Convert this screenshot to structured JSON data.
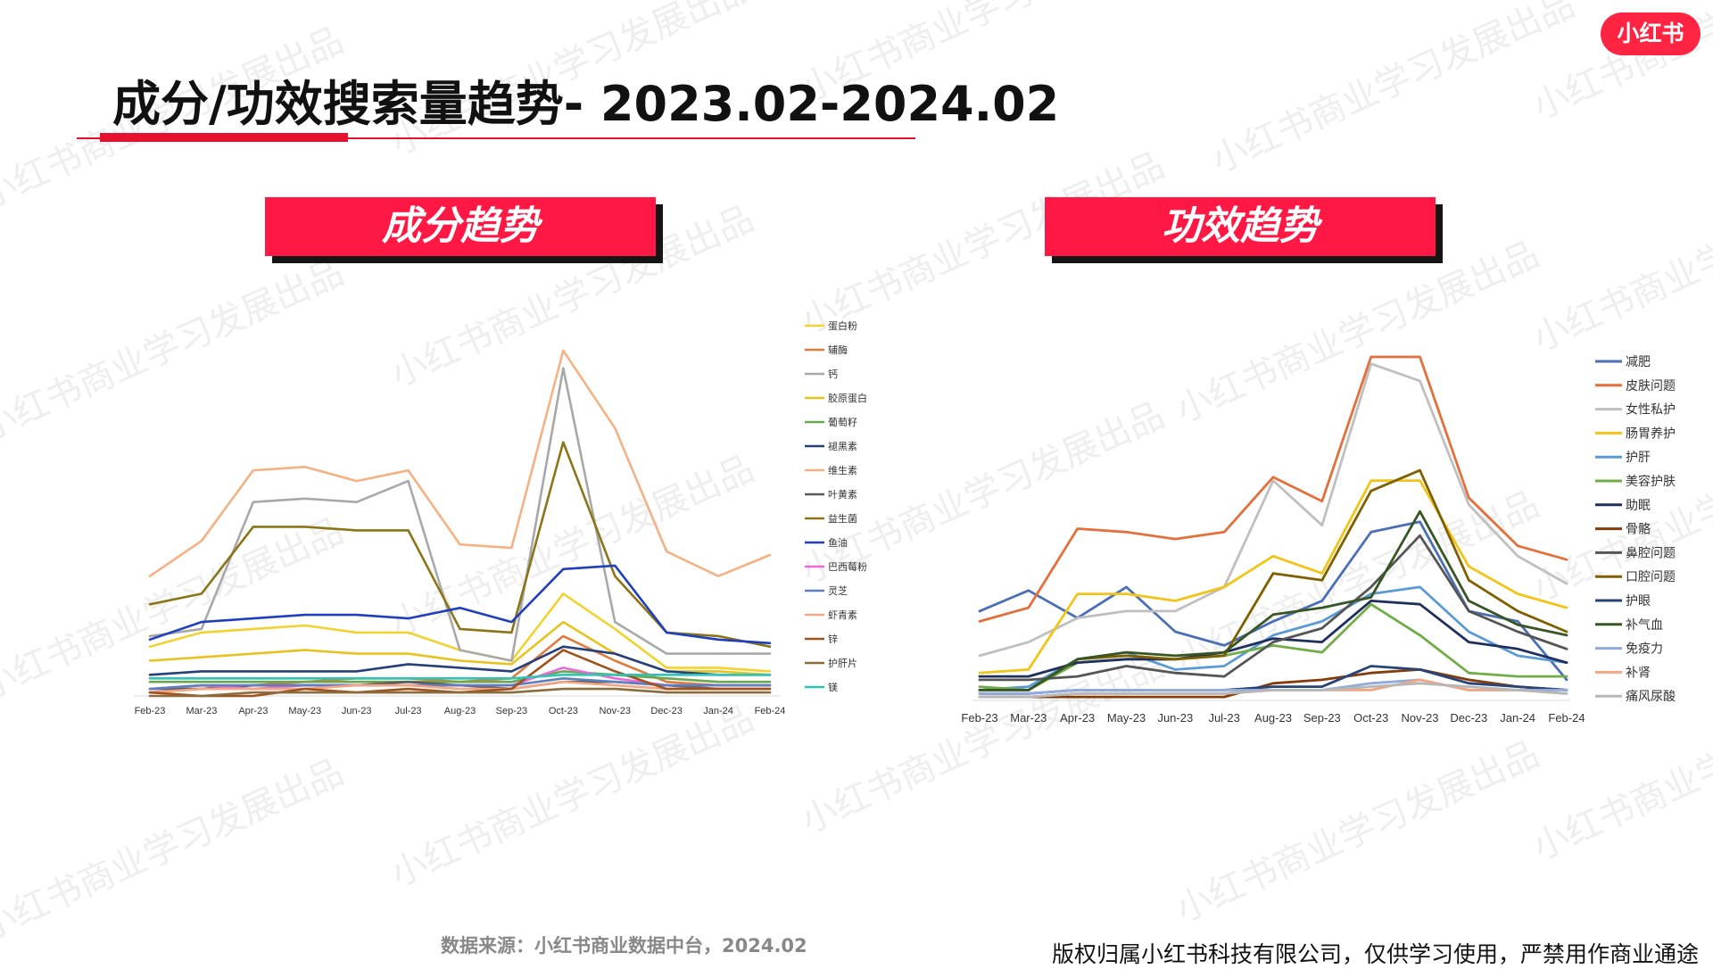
{
  "header": {
    "title": "成分/功效搜索量趋势- 2023.02-2024.02",
    "logo_text": "小红书"
  },
  "watermark_text": "小红书商业学习发展出品",
  "colors": {
    "accent": "#ff1843",
    "banner_shadow": "#151515",
    "title_line": "#e8102f"
  },
  "footer": {
    "source": "数据来源：小红书商业数据中台，2024.02",
    "copyright": "版权归属小红书科技有限公司，仅供学习使用，严禁用作商业通途"
  },
  "chart_data": [
    {
      "type": "line",
      "title": "成分趋势",
      "xlabel": "",
      "ylabel": "",
      "ylim": [
        0,
        100
      ],
      "grid": false,
      "legend": "right",
      "categories": [
        "Feb-23",
        "Mar-23",
        "Apr-23",
        "May-23",
        "Jun-23",
        "Jul-23",
        "Aug-23",
        "Sep-23",
        "Oct-23",
        "Nov-23",
        "Dec-23",
        "Jan-24",
        "Feb-24"
      ],
      "series": [
        {
          "name": "蛋白粉",
          "color": "#f2d22e",
          "values": [
            14,
            18,
            19,
            20,
            18,
            18,
            13,
            10,
            29,
            19,
            8,
            8,
            7
          ]
        },
        {
          "name": "辅酶",
          "color": "#e07b3a",
          "values": [
            1,
            2,
            3,
            4,
            5,
            5,
            4,
            5,
            17,
            10,
            4,
            3,
            3
          ]
        },
        {
          "name": "钙",
          "color": "#a8a8a8",
          "values": [
            17,
            19,
            55,
            56,
            55,
            61,
            13,
            10,
            93,
            21,
            12,
            12,
            12
          ]
        },
        {
          "name": "胶原蛋白",
          "color": "#e8c21f",
          "values": [
            10,
            11,
            12,
            13,
            12,
            12,
            10,
            9,
            21,
            12,
            7,
            7,
            6
          ]
        },
        {
          "name": "葡萄籽",
          "color": "#6aa84f",
          "values": [
            4,
            4,
            4,
            4,
            4,
            4,
            4,
            4,
            7,
            6,
            5,
            4,
            4
          ]
        },
        {
          "name": "褪黑素",
          "color": "#26407a",
          "values": [
            6,
            7,
            7,
            7,
            7,
            9,
            8,
            7,
            14,
            12,
            7,
            6,
            6
          ]
        },
        {
          "name": "维生素",
          "color": "#f4b183",
          "values": [
            34,
            44,
            64,
            65,
            61,
            64,
            43,
            42,
            98,
            76,
            41,
            34,
            40
          ]
        },
        {
          "name": "叶黄素",
          "color": "#595959",
          "values": [
            2,
            2,
            3,
            3,
            3,
            4,
            3,
            2,
            4,
            4,
            3,
            2,
            2
          ]
        },
        {
          "name": "益生菌",
          "color": "#8b7516",
          "values": [
            26,
            29,
            48,
            48,
            47,
            47,
            19,
            18,
            72,
            34,
            18,
            17,
            14
          ]
        },
        {
          "name": "鱼油",
          "color": "#1f3fbf",
          "values": [
            16,
            21,
            22,
            23,
            23,
            22,
            25,
            21,
            36,
            37,
            18,
            16,
            15
          ]
        },
        {
          "name": "巴西莓粉",
          "color": "#e86ad6",
          "values": [
            2,
            3,
            2,
            3,
            3,
            3,
            3,
            3,
            8,
            5,
            3,
            3,
            3
          ]
        },
        {
          "name": "灵芝",
          "color": "#5b7fbf",
          "values": [
            2,
            3,
            3,
            3,
            3,
            3,
            3,
            3,
            5,
            4,
            3,
            3,
            3
          ]
        },
        {
          "name": "虾青素",
          "color": "#f4a582",
          "values": [
            1,
            2,
            2,
            2,
            3,
            3,
            2,
            2,
            4,
            3,
            2,
            2,
            2
          ]
        },
        {
          "name": "锌",
          "color": "#a0521d",
          "values": [
            1,
            0,
            0,
            2,
            1,
            2,
            1,
            2,
            13,
            7,
            2,
            2,
            2
          ]
        },
        {
          "name": "护肝片",
          "color": "#8a6d3b",
          "values": [
            0,
            0,
            1,
            1,
            1,
            1,
            1,
            1,
            2,
            2,
            1,
            1,
            1
          ]
        },
        {
          "name": "镁",
          "color": "#2ec4b6",
          "values": [
            5,
            5,
            5,
            5,
            5,
            5,
            5,
            5,
            6,
            6,
            6,
            6,
            6
          ]
        }
      ]
    },
    {
      "type": "line",
      "title": "功效趋势",
      "xlabel": "",
      "ylabel": "",
      "ylim": [
        0,
        100
      ],
      "grid": false,
      "legend": "right",
      "categories": [
        "Feb-23",
        "Mar-23",
        "Apr-23",
        "May-23",
        "Jun-23",
        "Jul-23",
        "Aug-23",
        "Sep-23",
        "Oct-23",
        "Nov-23",
        "Dec-23",
        "Jan-24",
        "Feb-24"
      ],
      "series": [
        {
          "name": "减肥",
          "color": "#4a6fb5",
          "values": [
            26,
            32,
            24,
            33,
            20,
            16,
            23,
            29,
            49,
            52,
            26,
            23,
            6
          ]
        },
        {
          "name": "皮肤问题",
          "color": "#e46f3a",
          "values": [
            23,
            27,
            50,
            49,
            47,
            49,
            65,
            58,
            100,
            100,
            59,
            45,
            41
          ]
        },
        {
          "name": "女性私护",
          "color": "#bfbfbf",
          "values": [
            13,
            17,
            24,
            26,
            26,
            33,
            64,
            51,
            98,
            93,
            57,
            42,
            34
          ]
        },
        {
          "name": "肠胃养护",
          "color": "#f2c417",
          "values": [
            8,
            9,
            31,
            31,
            29,
            33,
            42,
            37,
            64,
            64,
            39,
            31,
            27
          ]
        },
        {
          "name": "护肝",
          "color": "#5b9bd5",
          "values": [
            3,
            4,
            12,
            14,
            9,
            10,
            19,
            23,
            31,
            33,
            20,
            13,
            11
          ]
        },
        {
          "name": "美容护肤",
          "color": "#70ad47",
          "values": [
            4,
            3,
            11,
            12,
            12,
            13,
            16,
            14,
            28,
            19,
            8,
            7,
            7
          ]
        },
        {
          "name": "助眠",
          "color": "#1f2f5e",
          "values": [
            7,
            7,
            11,
            12,
            12,
            14,
            18,
            17,
            29,
            28,
            17,
            15,
            11
          ]
        },
        {
          "name": "骨骼",
          "color": "#843c0c",
          "values": [
            1,
            1,
            1,
            1,
            1,
            1,
            5,
            6,
            8,
            9,
            6,
            4,
            3
          ]
        },
        {
          "name": "鼻腔问题",
          "color": "#555555",
          "values": [
            6,
            6,
            7,
            10,
            8,
            7,
            17,
            21,
            33,
            48,
            26,
            20,
            15
          ]
        },
        {
          "name": "口腔问题",
          "color": "#7f6000",
          "values": [
            3,
            3,
            12,
            13,
            12,
            13,
            37,
            35,
            61,
            67,
            35,
            26,
            20
          ]
        },
        {
          "name": "护眼",
          "color": "#264478",
          "values": [
            2,
            2,
            3,
            3,
            3,
            3,
            4,
            4,
            10,
            9,
            5,
            4,
            3
          ]
        },
        {
          "name": "补气血",
          "color": "#375623",
          "values": [
            3,
            3,
            12,
            14,
            13,
            14,
            25,
            27,
            30,
            55,
            29,
            22,
            19
          ]
        },
        {
          "name": "免疫力",
          "color": "#8faadc",
          "values": [
            2,
            2,
            3,
            3,
            3,
            3,
            3,
            3,
            5,
            6,
            3,
            3,
            3
          ]
        },
        {
          "name": "补肾",
          "color": "#f4a582",
          "values": [
            1,
            1,
            2,
            2,
            2,
            2,
            3,
            3,
            3,
            6,
            3,
            3,
            2
          ]
        },
        {
          "name": "痛风尿酸",
          "color": "#b7b7b7",
          "values": [
            1,
            1,
            2,
            2,
            2,
            2,
            3,
            3,
            4,
            5,
            4,
            3,
            2
          ]
        }
      ]
    }
  ]
}
